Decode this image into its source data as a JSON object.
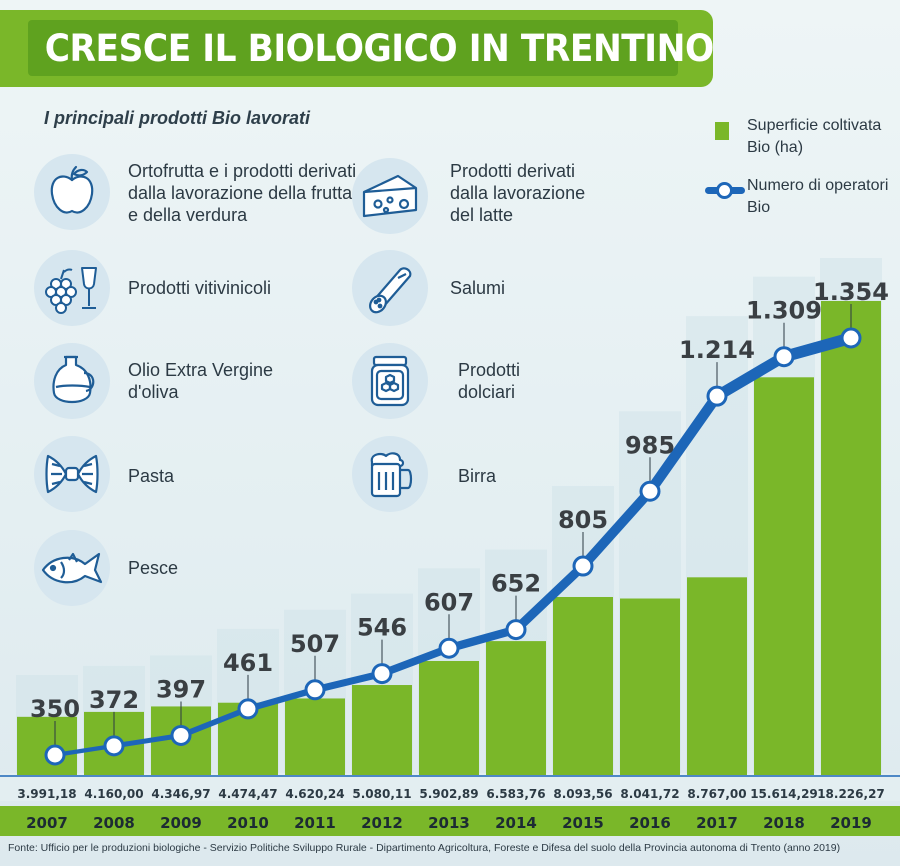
{
  "title": "CRESCE IL BIOLOGICO IN TRENTINO",
  "subtitle": "I principali prodotti Bio lavorati",
  "legend": {
    "bars_label": "Superficie coltivata  Bio (ha)",
    "line_label": "Numero di operatori Bio"
  },
  "products": [
    {
      "icon": "apple-icon",
      "label": "Ortofrutta e i prodotti derivati dalla  lavorazione della frutta e della verdura"
    },
    {
      "icon": "cheese-icon",
      "label": "Prodotti derivati dalla lavorazione del latte"
    },
    {
      "icon": "grapes-wine-icon",
      "label": "Prodotti vitivinicoli"
    },
    {
      "icon": "salami-icon",
      "label": "Salumi"
    },
    {
      "icon": "olive-oil-icon",
      "label": "Olio Extra Vergine d'oliva"
    },
    {
      "icon": "honey-jar-icon",
      "label": "Prodotti dolciari"
    },
    {
      "icon": "pasta-icon",
      "label": "Pasta"
    },
    {
      "icon": "beer-icon",
      "label": "Birra"
    },
    {
      "icon": "fish-icon",
      "label": "Pesce"
    }
  ],
  "source": "Fonte: Ufficio per le produzioni biologiche - Servizio Politiche Sviluppo Rurale - Dipartimento Agricoltura, Foreste e Difesa del suolo della Provincia autonoma di Trento (anno 2019)",
  "colors": {
    "bar": "#7ab729",
    "line": "#1d66b8",
    "title_bg": "#7ab729"
  },
  "chart_data": {
    "type": "bar",
    "categories": [
      "2007",
      "2008",
      "2009",
      "2010",
      "2011",
      "2012",
      "2013",
      "2014",
      "2015",
      "2016",
      "2017",
      "2018",
      "2019"
    ],
    "series": [
      {
        "name": "Superficie coltivata  Bio (ha)",
        "type": "bar",
        "values": [
          3991.18,
          4160.0,
          4346.97,
          4474.47,
          4620.24,
          5080.11,
          5902.89,
          6583.76,
          8093.56,
          8041.72,
          8767.0,
          15614.29,
          18226.27
        ],
        "labels": [
          "3.991,18",
          "4.160,00",
          "4.346,97",
          "4.474,47",
          "4.620,24",
          "5.080,11",
          "5.902,89",
          "6.583,76",
          "8.093,56",
          "8.041,72",
          "8.767,00",
          "15.614,29",
          "18.226,27"
        ]
      },
      {
        "name": "Numero di operatori Bio",
        "type": "line",
        "values": [
          350,
          372,
          397,
          461,
          507,
          546,
          607,
          652,
          805,
          985,
          1214,
          1309,
          1354
        ],
        "labels": [
          "350",
          "372",
          "397",
          "461",
          "507",
          "546",
          "607",
          "652",
          "805",
          "985",
          "1.214",
          "1.309",
          "1.354"
        ]
      }
    ]
  }
}
